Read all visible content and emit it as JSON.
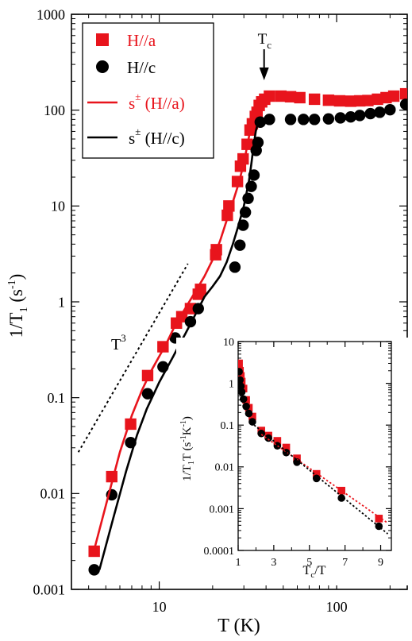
{
  "chart_data": [
    {
      "type": "scatter",
      "title": "",
      "xlabel": "T (K)",
      "ylabel": "1/T1 (s-1)",
      "ylabel_parts": {
        "base": "1/T",
        "sub": "1",
        "rest": " (s",
        "sup": "-1",
        "close": ")"
      },
      "x_scale": "log",
      "y_scale": "log",
      "xlim": [
        3.2,
        250
      ],
      "ylim": [
        0.001,
        1000
      ],
      "x_ticks": [
        10,
        100
      ],
      "x_tick_labels": [
        "10",
        "100"
      ],
      "y_ticks": [
        0.001,
        0.01,
        0.1,
        1,
        10,
        100,
        1000
      ],
      "y_tick_labels": [
        "0.001",
        "0.01",
        "0.1",
        "1",
        "10",
        "100",
        "1000"
      ],
      "legend_position": "top-left",
      "series": [
        {
          "name": "H//a",
          "marker": "square",
          "color": "#e8141c",
          "points": [
            [
              4.3,
              0.0025
            ],
            [
              5.4,
              0.015
            ],
            [
              6.9,
              0.053
            ],
            [
              8.6,
              0.17
            ],
            [
              10.5,
              0.34
            ],
            [
              12.5,
              0.6
            ],
            [
              13.4,
              0.7
            ],
            [
              15,
              0.85
            ],
            [
              16.6,
              1.2
            ],
            [
              17.1,
              1.35
            ],
            [
              20.8,
              3.1
            ],
            [
              21,
              3.5
            ],
            [
              24.2,
              8
            ],
            [
              24.7,
              10
            ],
            [
              27.6,
              18
            ],
            [
              28.7,
              26
            ],
            [
              29.7,
              31
            ],
            [
              31.3,
              44
            ],
            [
              32.5,
              62
            ],
            [
              33.5,
              72
            ],
            [
              34.8,
              86
            ],
            [
              35.6,
              95
            ],
            [
              36.6,
              112
            ],
            [
              37.8,
              122
            ],
            [
              39.3,
              130
            ],
            [
              41.8,
              140
            ],
            [
              48.5,
              140
            ],
            [
              55,
              138
            ],
            [
              62,
              135
            ],
            [
              75,
              130
            ],
            [
              90,
              127
            ],
            [
              104,
              125
            ],
            [
              120,
              124
            ],
            [
              135,
              125
            ],
            [
              150,
              126
            ],
            [
              170,
              130
            ],
            [
              190,
              135
            ],
            [
              210,
              140
            ],
            [
              245,
              148
            ]
          ]
        },
        {
          "name": "H//c",
          "marker": "circle",
          "color": "#000000",
          "points": [
            [
              4.3,
              0.0016
            ],
            [
              5.4,
              0.0097
            ],
            [
              6.9,
              0.034
            ],
            [
              8.6,
              0.11
            ],
            [
              10.5,
              0.21
            ],
            [
              12.3,
              0.42
            ],
            [
              15,
              0.62
            ],
            [
              16.6,
              0.85
            ],
            [
              26.7,
              2.3
            ],
            [
              28.5,
              3.9
            ],
            [
              29.7,
              6.3
            ],
            [
              30.6,
              8.6
            ],
            [
              31.7,
              12
            ],
            [
              33,
              16
            ],
            [
              34.2,
              21
            ],
            [
              35.2,
              38
            ],
            [
              36,
              46
            ],
            [
              37.1,
              75
            ],
            [
              41.8,
              80
            ],
            [
              55,
              80
            ],
            [
              65,
              80
            ],
            [
              75,
              80
            ],
            [
              90,
              81
            ],
            [
              105,
              83
            ],
            [
              120,
              85
            ],
            [
              135,
              88
            ],
            [
              155,
              92
            ],
            [
              175,
              95
            ],
            [
              200,
              101
            ],
            [
              245,
              115
            ]
          ]
        },
        {
          "name": "s± (H//a)",
          "name_parts": {
            "base": "s",
            "sup": "±",
            "rest": "  (H//a)"
          },
          "line": "solid",
          "color": "#e8141c",
          "points": [
            [
              4.2,
              0.0022
            ],
            [
              5,
              0.0075
            ],
            [
              6,
              0.027
            ],
            [
              7,
              0.065
            ],
            [
              8,
              0.12
            ],
            [
              9,
              0.19
            ],
            [
              10,
              0.27
            ],
            [
              11,
              0.37
            ],
            [
              12,
              0.52
            ],
            [
              13,
              0.68
            ],
            [
              14,
              0.85
            ],
            [
              16,
              1.28
            ],
            [
              18,
              1.85
            ],
            [
              20,
              2.75
            ],
            [
              22,
              4.3
            ],
            [
              24,
              7.1
            ],
            [
              26,
              11
            ],
            [
              28,
              17
            ],
            [
              30,
              28
            ],
            [
              32,
              52
            ],
            [
              33,
              72
            ],
            [
              34,
              95
            ],
            [
              35,
              115
            ],
            [
              36,
              130
            ],
            [
              37,
              134
            ],
            [
              38,
              136
            ],
            [
              40,
              137
            ]
          ]
        },
        {
          "name": "s± (H//c)",
          "name_parts": {
            "base": "s",
            "sup": "±",
            "rest": "  (H//c)"
          },
          "line": "solid",
          "color": "#000000",
          "points": [
            [
              4.6,
              0.0016
            ],
            [
              5.5,
              0.0055
            ],
            [
              6.5,
              0.017
            ],
            [
              7.5,
              0.041
            ],
            [
              8.5,
              0.076
            ],
            [
              10,
              0.145
            ],
            [
              11,
              0.2
            ],
            [
              12,
              0.27
            ],
            [
              13,
              0.36
            ],
            [
              14,
              0.46
            ],
            [
              16,
              0.74
            ],
            [
              18,
              1.13
            ],
            [
              20,
              1.45
            ],
            [
              22,
              1.85
            ],
            [
              24,
              2.6
            ],
            [
              26,
              4
            ],
            [
              28,
              6.3
            ],
            [
              30,
              10
            ],
            [
              32,
              18
            ],
            [
              33,
              27
            ],
            [
              34,
              42
            ],
            [
              35,
              60
            ],
            [
              36,
              74
            ],
            [
              37,
              80
            ],
            [
              38,
              81
            ],
            [
              40,
              81
            ]
          ]
        },
        {
          "name": "T^3",
          "name_parts": {
            "base": "T",
            "sup": "3"
          },
          "line": "dotted",
          "color": "#000000",
          "points": [
            [
              3.5,
              0.027
            ],
            [
              14.5,
              2.5
            ]
          ]
        }
      ],
      "annotations": [
        {
          "text": "T",
          "sub": "c",
          "at_x": 39,
          "arrow": "down"
        }
      ]
    },
    {
      "type": "scatter",
      "title": "",
      "xlabel": "Tc/T",
      "xlabel_parts": {
        "base": "T",
        "sub": "c",
        "rest": "/T"
      },
      "ylabel": "1/T1T (s-1K-1)",
      "ylabel_parts": {
        "a": "1/T",
        "sub": "1",
        "b": "T (s",
        "sup1": "-1",
        "c": "K",
        "sup2": "-1",
        "d": ")"
      },
      "x_scale": "linear",
      "y_scale": "log",
      "xlim": [
        1,
        9.6
      ],
      "ylim": [
        0.0001,
        10
      ],
      "x_ticks": [
        1,
        3,
        5,
        7,
        9
      ],
      "x_tick_labels": [
        "1",
        "3",
        "5",
        "7",
        "9"
      ],
      "y_ticks": [
        0.0001,
        0.001,
        0.01,
        0.1,
        1,
        10
      ],
      "y_tick_labels": [
        "0.0001",
        "0.001",
        "0.01",
        "0.1",
        "1",
        "10"
      ],
      "series": [
        {
          "name": "H//a",
          "marker": "square",
          "color": "#e8141c",
          "points": [
            [
              1.05,
              3.0
            ],
            [
              1.1,
              2.0
            ],
            [
              1.15,
              1.5
            ],
            [
              1.2,
              1.1
            ],
            [
              1.3,
              0.75
            ],
            [
              1.45,
              0.4
            ],
            [
              1.6,
              0.26
            ],
            [
              1.8,
              0.16
            ],
            [
              2.3,
              0.074
            ],
            [
              2.7,
              0.056
            ],
            [
              3.2,
              0.042
            ],
            [
              3.7,
              0.029
            ],
            [
              4.3,
              0.016
            ],
            [
              5.4,
              0.0068
            ],
            [
              6.8,
              0.0027
            ],
            [
              8.9,
              0.00058
            ]
          ]
        },
        {
          "name": "H//c",
          "marker": "circle",
          "color": "#000000",
          "points": [
            [
              1.05,
              1.9
            ],
            [
              1.1,
              1.2
            ],
            [
              1.15,
              0.85
            ],
            [
              1.2,
              0.62
            ],
            [
              1.3,
              0.42
            ],
            [
              1.45,
              0.28
            ],
            [
              1.6,
              0.19
            ],
            [
              1.8,
              0.12
            ],
            [
              2.3,
              0.063
            ],
            [
              2.7,
              0.049
            ],
            [
              3.2,
              0.032
            ],
            [
              3.7,
              0.022
            ],
            [
              4.3,
              0.013
            ],
            [
              5.4,
              0.0053
            ],
            [
              6.8,
              0.0018
            ],
            [
              8.9,
              0.00038
            ]
          ]
        },
        {
          "name": "fit H//a",
          "line": "dotted",
          "color": "#e8141c",
          "points": [
            [
              2.3,
              0.06
            ],
            [
              9.4,
              0.00045
            ]
          ]
        },
        {
          "name": "fit H//c",
          "line": "dotted",
          "color": "#000000",
          "points": [
            [
              1.9,
              0.1
            ],
            [
              9.4,
              0.00025
            ]
          ]
        }
      ]
    }
  ]
}
